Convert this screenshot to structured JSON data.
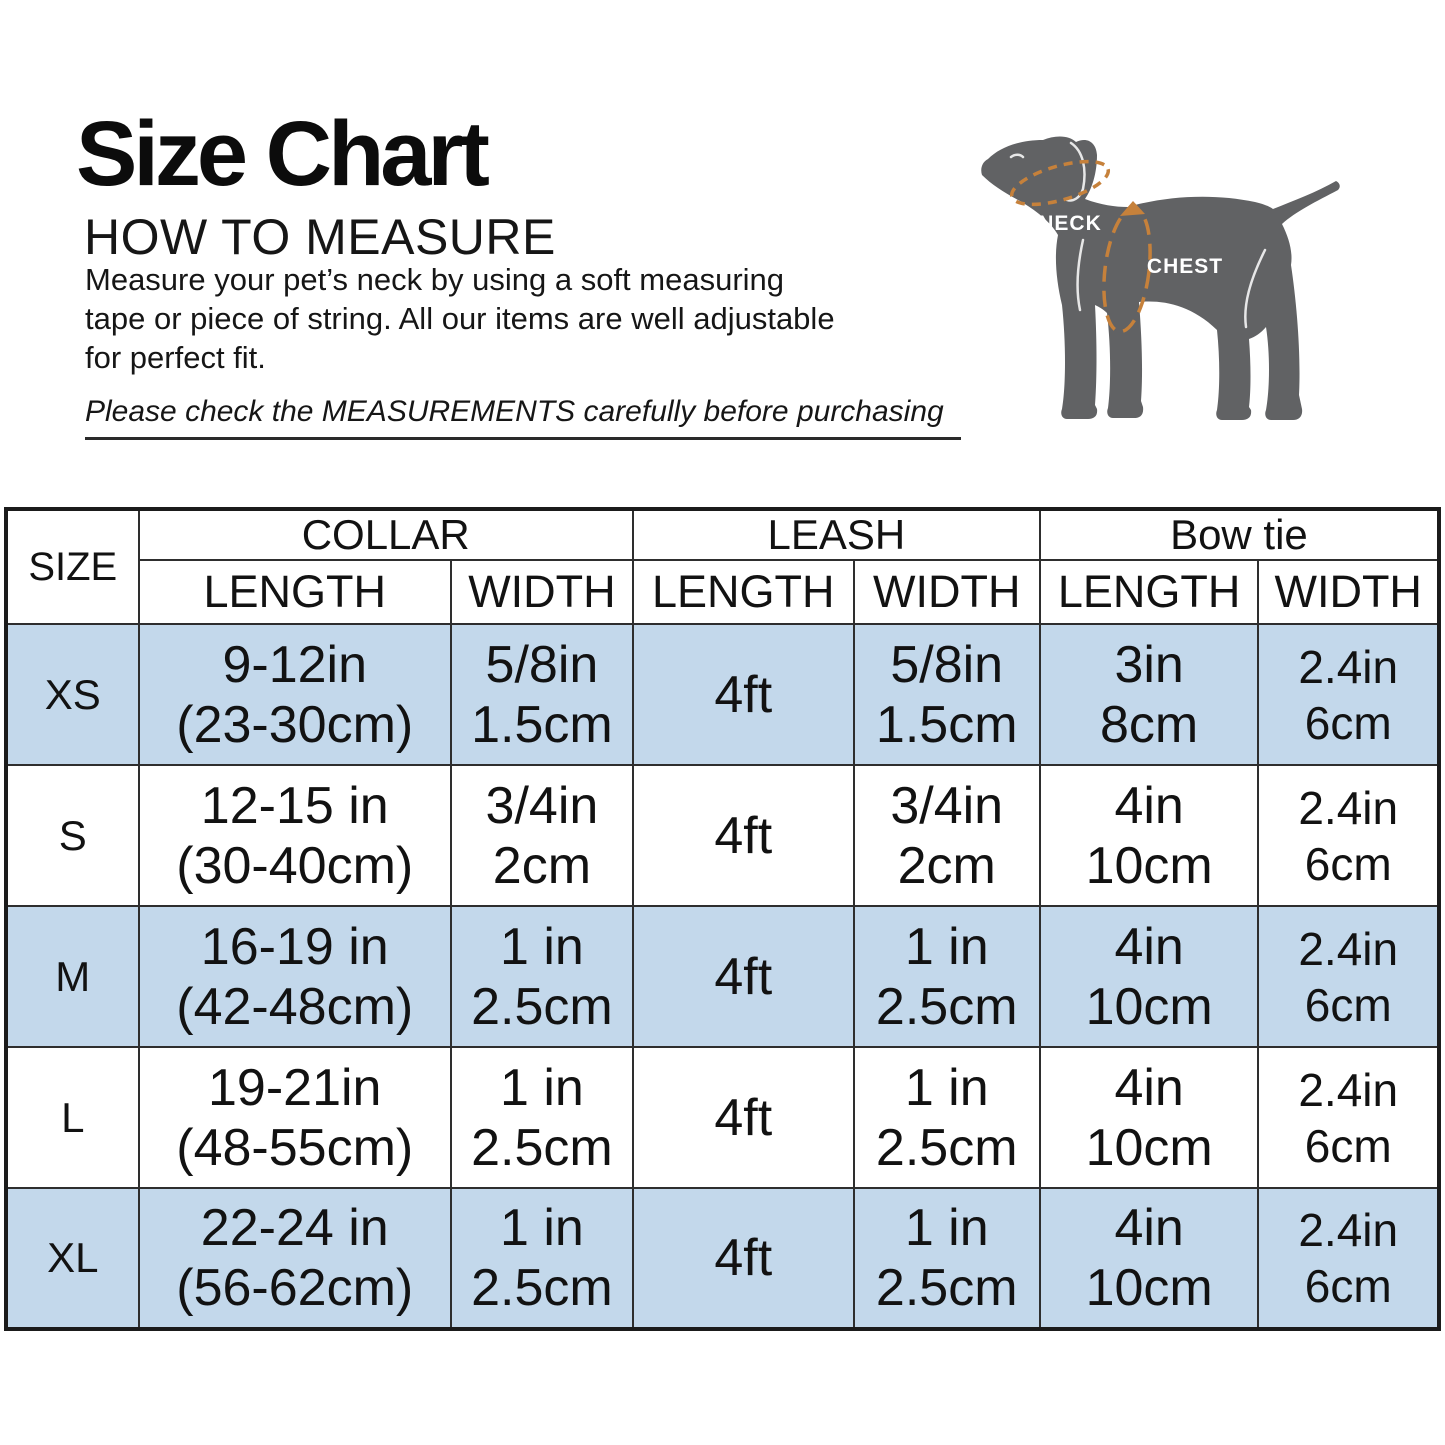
{
  "header": {
    "title": "Size Chart",
    "subtitle": "HOW TO MEASURE",
    "description_lines": [
      "Measure your pet’s neck by using a soft measuring",
      "tape or piece of string. All our items are well adjustable",
      "for perfect fit."
    ],
    "notice": "Please check the MEASUREMENTS carefully before purchasing"
  },
  "diagram": {
    "neck_label": "NECK",
    "chest_label": "CHEST",
    "dog_color": "#616264",
    "measure_color": "#c6813b",
    "label_color": "#ffffff"
  },
  "table": {
    "corner_label": "SIZE",
    "alt_row_color": "#c3d8eb",
    "groups": [
      {
        "label": "COLLAR",
        "subheaders": [
          "LENGTH",
          "WIDTH"
        ]
      },
      {
        "label": "LEASH",
        "subheaders": [
          "LENGTH",
          "WIDTH"
        ]
      },
      {
        "label": "Bow tie",
        "subheaders": [
          "LENGTH",
          "WIDTH"
        ]
      }
    ],
    "rows": [
      {
        "size": "XS",
        "shaded": true,
        "cells": [
          [
            "9-12in",
            "(23-30cm)"
          ],
          [
            "5/8in",
            "1.5cm"
          ],
          [
            "4ft"
          ],
          [
            "5/8in",
            "1.5cm"
          ],
          [
            "3in",
            "8cm"
          ],
          [
            "2.4in",
            "6cm"
          ]
        ]
      },
      {
        "size": "S",
        "shaded": false,
        "cells": [
          [
            "12-15 in",
            "(30-40cm)"
          ],
          [
            "3/4in",
            "2cm"
          ],
          [
            "4ft"
          ],
          [
            "3/4in",
            "2cm"
          ],
          [
            "4in",
            "10cm"
          ],
          [
            "2.4in",
            "6cm"
          ]
        ]
      },
      {
        "size": "M",
        "shaded": true,
        "cells": [
          [
            "16-19 in",
            "(42-48cm)"
          ],
          [
            "1 in",
            "2.5cm"
          ],
          [
            "4ft"
          ],
          [
            "1 in",
            "2.5cm"
          ],
          [
            "4in",
            "10cm"
          ],
          [
            "2.4in",
            "6cm"
          ]
        ]
      },
      {
        "size": "L",
        "shaded": false,
        "cells": [
          [
            "19-21in",
            "(48-55cm)"
          ],
          [
            "1 in",
            "2.5cm"
          ],
          [
            "4ft"
          ],
          [
            "1 in",
            "2.5cm"
          ],
          [
            "4in",
            "10cm"
          ],
          [
            "2.4in",
            "6cm"
          ]
        ]
      },
      {
        "size": "XL",
        "shaded": true,
        "cells": [
          [
            "22-24 in",
            "(56-62cm)"
          ],
          [
            "1 in",
            "2.5cm"
          ],
          [
            "4ft"
          ],
          [
            "1 in",
            "2.5cm"
          ],
          [
            "4in",
            "10cm"
          ],
          [
            "2.4in",
            "6cm"
          ]
        ]
      }
    ]
  }
}
